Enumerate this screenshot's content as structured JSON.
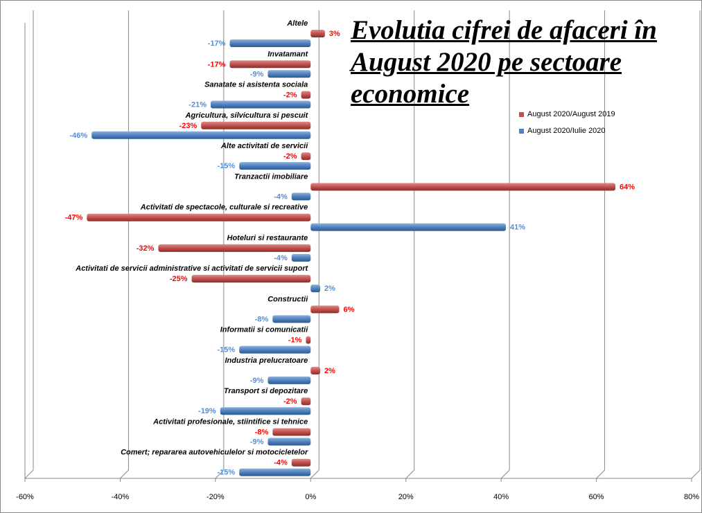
{
  "chart_data": {
    "type": "bar",
    "orientation": "horizontal",
    "title": "Evolutia cifrei de afaceri în August 2020 pe sectoare economice",
    "categories": [
      "Altele",
      "Invatamant",
      "Sanatate si asistenta sociala",
      "Agricultura, silvicultura si pescuit",
      "Alte activitati de servicii",
      "Tranzactii imobiliare",
      "Activitati de spectacole,  culturale si recreative",
      "Hoteluri si restaurante",
      "Activitati de servicii  administrative  si activitati de servicii  suport",
      "Constructii",
      "Informatii si comunicatii",
      "Industria prelucratoare",
      "Transport si depozitare",
      "Activitati profesionale,  stiintifice  si tehnice",
      "Comert; repararea autovehiculelor  si motocicletelor"
    ],
    "series": [
      {
        "name": "August 2020/August 2019",
        "color": "#c0504d",
        "label_color": "#ff0000",
        "values": [
          3,
          -17,
          -2,
          -23,
          -2,
          64,
          -47,
          -32,
          -25,
          6,
          -1,
          2,
          -2,
          -8,
          -4
        ]
      },
      {
        "name": "August 2020/Iulie 2020",
        "color": "#4f81bd",
        "label_color": "#558ed5",
        "values": [
          -17,
          -9,
          -21,
          -46,
          -15,
          -4,
          41,
          -4,
          2,
          -8,
          -15,
          -9,
          -19,
          -9,
          -15
        ]
      }
    ],
    "xlim": [
      -60,
      80
    ],
    "xticks": [
      -60,
      -40,
      -20,
      0,
      20,
      40,
      60,
      80
    ],
    "xtick_labels": [
      "-60%",
      "-40%",
      "-20%",
      "0%",
      "20%",
      "40%",
      "60%",
      "80%"
    ],
    "grid": true,
    "legend": "right"
  }
}
